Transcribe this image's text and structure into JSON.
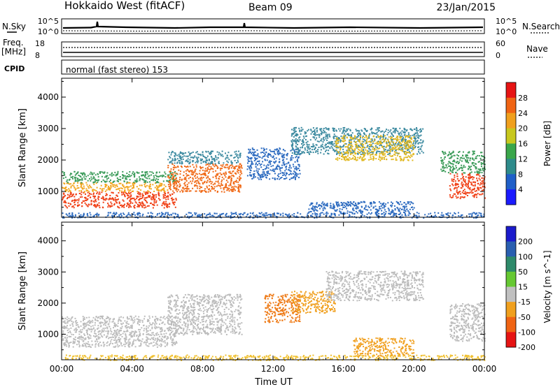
{
  "header": {
    "title": "Hokkaido West (fitACF)",
    "beam": "Beam 09",
    "date": "23/Jan/2015"
  },
  "sky_panel": {
    "left_label": "N.Sky",
    "right_label": "N.Search",
    "ticks": [
      "10^5",
      "10^0"
    ]
  },
  "freq_panel": {
    "left_label_line1": "Freq.",
    "left_label_line2": "[MHz]",
    "left_ticks": [
      "18",
      "8"
    ],
    "right_ticks": [
      "60",
      "0"
    ],
    "right_label": "Nave"
  },
  "cpid": {
    "label": "CPID",
    "text": "normal (fast stereo) 153"
  },
  "chart_data": [
    {
      "type": "heatmap",
      "name": "power",
      "ylabel": "Slant Range [km]",
      "xlabel": "",
      "x_ticks": [
        "00:00",
        "04:00",
        "08:00",
        "12:00",
        "16:00",
        "20:00",
        "00:00"
      ],
      "y_ticks": [
        1000,
        2000,
        3000,
        4000
      ],
      "ylim": [
        180,
        4600
      ],
      "xlim_hours": [
        0,
        24
      ],
      "colorbar": {
        "label": "Power [dB]",
        "ticks": [
          "4",
          "8",
          "12",
          "16",
          "20",
          "24",
          "28"
        ],
        "colors": [
          "#1b1bff",
          "#1f5fc8",
          "#2e8b8b",
          "#3aa64a",
          "#c8c81e",
          "#f0a01e",
          "#f06414",
          "#e61414"
        ]
      },
      "regions": [
        {
          "t0": 0,
          "t1": 6.5,
          "r0": 500,
          "r1": 1000,
          "color": "#f04016"
        },
        {
          "t0": 0,
          "t1": 6.0,
          "r0": 1000,
          "r1": 1300,
          "color": "#f2a51c"
        },
        {
          "t0": 0,
          "t1": 6.5,
          "r0": 1300,
          "r1": 1650,
          "color": "#3c9c5a"
        },
        {
          "t0": 6.0,
          "t1": 10.2,
          "r0": 1000,
          "r1": 1900,
          "color": "#f06a18"
        },
        {
          "t0": 6.0,
          "t1": 10.2,
          "r0": 1900,
          "r1": 2300,
          "color": "#3c8aa0"
        },
        {
          "t0": 10.5,
          "t1": 13.5,
          "r0": 1400,
          "r1": 2400,
          "color": "#2e6cc0"
        },
        {
          "t0": 13.0,
          "t1": 20.5,
          "r0": 2200,
          "r1": 3050,
          "color": "#3c8aa0"
        },
        {
          "t0": 15.5,
          "t1": 20.0,
          "r0": 2000,
          "r1": 2800,
          "color": "#e0b822"
        },
        {
          "t0": 14.0,
          "t1": 20.0,
          "r0": 300,
          "r1": 700,
          "color": "#2e6cc0"
        },
        {
          "t0": 22.0,
          "t1": 24.0,
          "r0": 800,
          "r1": 1600,
          "color": "#f04016"
        },
        {
          "t0": 21.5,
          "t1": 24.0,
          "r0": 1600,
          "r1": 2300,
          "color": "#3c9c5a"
        },
        {
          "t0": 0,
          "t1": 24.0,
          "r0": 180,
          "r1": 350,
          "color": "#2e6cc0"
        }
      ]
    },
    {
      "type": "heatmap",
      "name": "velocity",
      "ylabel": "Slant Range [km]",
      "xlabel": "Time UT",
      "x_ticks": [
        "00:00",
        "04:00",
        "08:00",
        "12:00",
        "16:00",
        "20:00",
        "00:00"
      ],
      "y_ticks": [
        1000,
        2000,
        3000,
        4000
      ],
      "ylim": [
        180,
        4600
      ],
      "xlim_hours": [
        0,
        24
      ],
      "colorbar": {
        "label": "Velocity [m s^-1]",
        "ticks": [
          "200",
          "100",
          "50",
          "15",
          "-15",
          "-50",
          "-100",
          "-200"
        ],
        "colors": [
          "#1b1bcc",
          "#2a5fb0",
          "#2e8a6a",
          "#66c832",
          "#c0c0c0",
          "#f0a01e",
          "#f06414",
          "#e61414"
        ]
      },
      "regions": [
        {
          "t0": 0,
          "t1": 6.5,
          "r0": 600,
          "r1": 1600,
          "color": "#bcbcbc"
        },
        {
          "t0": 6.0,
          "t1": 10.2,
          "r0": 1000,
          "r1": 2300,
          "color": "#bcbcbc"
        },
        {
          "t0": 11.5,
          "t1": 13.5,
          "r0": 1400,
          "r1": 2300,
          "color": "#ee7a16"
        },
        {
          "t0": 13.0,
          "t1": 15.5,
          "r0": 1700,
          "r1": 2400,
          "color": "#f0a020"
        },
        {
          "t0": 15.0,
          "t1": 20.5,
          "r0": 2100,
          "r1": 3050,
          "color": "#bcbcbc"
        },
        {
          "t0": 16.5,
          "t1": 20.0,
          "r0": 300,
          "r1": 900,
          "color": "#f0a020"
        },
        {
          "t0": 22.0,
          "t1": 24.0,
          "r0": 800,
          "r1": 2000,
          "color": "#bcbcbc"
        },
        {
          "t0": 0,
          "t1": 24.0,
          "r0": 180,
          "r1": 350,
          "color": "#f0c030"
        }
      ]
    }
  ]
}
